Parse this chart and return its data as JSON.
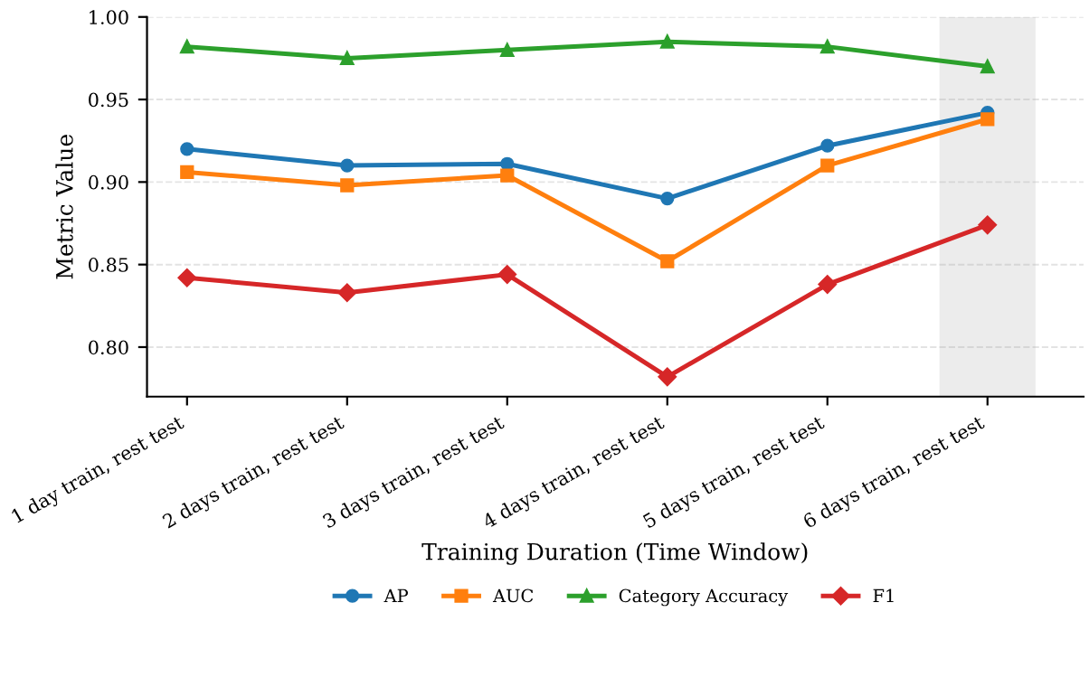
{
  "chart_data": {
    "type": "line",
    "xlabel": "Training Duration (Time Window)",
    "ylabel": "Metric Value",
    "x": [
      1,
      2,
      3,
      4,
      5,
      6
    ],
    "xticks": [
      {
        "value": 1,
        "label": "1 day train, rest test"
      },
      {
        "value": 2,
        "label": "2 days train, rest test"
      },
      {
        "value": 3,
        "label": "3 days train, rest test"
      },
      {
        "value": 4,
        "label": "4 days train, rest test"
      },
      {
        "value": 5,
        "label": "5 days train, rest test"
      },
      {
        "value": 6,
        "label": "6 days train, rest test"
      }
    ],
    "xlim": [
      0.75,
      6.6
    ],
    "ylim": [
      0.77,
      1.0
    ],
    "yticks": [
      {
        "value": 0.8,
        "label": "0.80"
      },
      0.85,
      {
        "value": 0.9,
        "label": "0.90"
      },
      0.95,
      {
        "value": 1.0,
        "label": "1.00"
      }
    ],
    "series": [
      {
        "name": "AP",
        "color": "#1f77b4",
        "marker": "circle",
        "values": [
          0.92,
          0.91,
          0.911,
          0.89,
          0.922,
          0.942
        ]
      },
      {
        "name": "AUC",
        "color": "#ff7f0e",
        "marker": "square",
        "values": [
          0.906,
          0.898,
          0.904,
          0.852,
          0.91,
          0.938
        ]
      },
      {
        "name": "Category Accuracy",
        "color": "#2ca02c",
        "marker": "triangle",
        "values": [
          0.982,
          0.975,
          0.98,
          0.985,
          0.982,
          0.97
        ]
      },
      {
        "name": "F1",
        "color": "#d62728",
        "marker": "diamond",
        "values": [
          0.842,
          0.833,
          0.844,
          0.782,
          0.838,
          0.874
        ]
      }
    ],
    "bands": [
      {
        "axis": "x",
        "from": 5.7,
        "to": 6.3,
        "color": "#d9d9d9"
      }
    ],
    "grid": "y",
    "legend": "bottom",
    "line_style": "solid"
  }
}
